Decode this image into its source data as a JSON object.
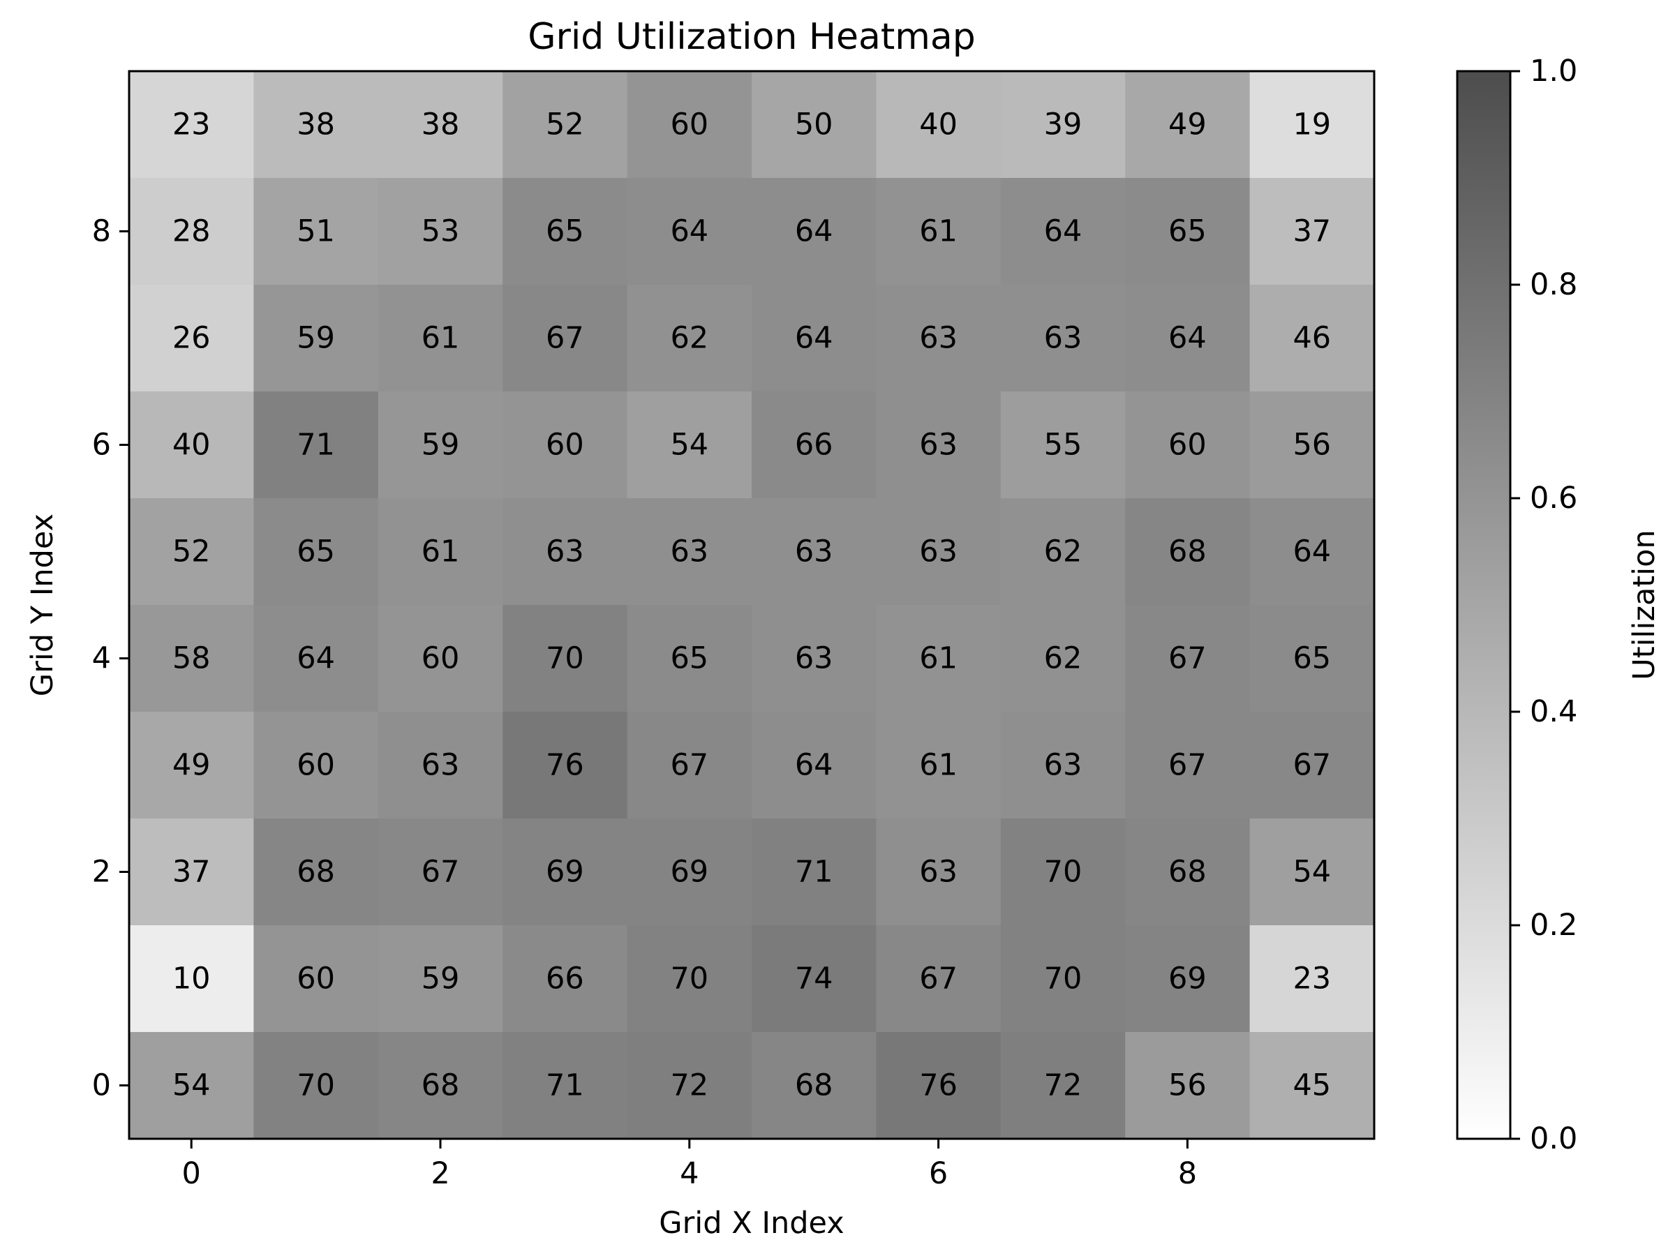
{
  "chart_data": {
    "type": "heatmap",
    "title": "Grid Utilization Heatmap",
    "xlabel": "Grid X Index",
    "ylabel": "Grid Y Index",
    "x": [
      0,
      1,
      2,
      3,
      4,
      5,
      6,
      7,
      8,
      9
    ],
    "y": [
      0,
      1,
      2,
      3,
      4,
      5,
      6,
      7,
      8,
      9
    ],
    "x_ticks": [
      "0",
      "2",
      "4",
      "6",
      "8"
    ],
    "y_ticks": [
      "0",
      "2",
      "4",
      "6",
      "8"
    ],
    "values_by_row_from_top": [
      [
        23,
        38,
        38,
        52,
        60,
        50,
        40,
        39,
        49,
        19
      ],
      [
        28,
        51,
        53,
        65,
        64,
        64,
        61,
        64,
        65,
        37
      ],
      [
        26,
        59,
        61,
        67,
        62,
        64,
        63,
        63,
        64,
        46
      ],
      [
        40,
        71,
        59,
        60,
        54,
        66,
        63,
        55,
        60,
        56
      ],
      [
        52,
        65,
        61,
        63,
        63,
        63,
        63,
        62,
        68,
        64
      ],
      [
        58,
        64,
        60,
        70,
        65,
        63,
        61,
        62,
        67,
        65
      ],
      [
        49,
        60,
        63,
        76,
        67,
        64,
        61,
        63,
        67,
        67
      ],
      [
        37,
        68,
        67,
        69,
        69,
        71,
        63,
        70,
        68,
        54
      ],
      [
        10,
        60,
        59,
        66,
        70,
        74,
        67,
        70,
        69,
        23
      ],
      [
        54,
        70,
        68,
        71,
        72,
        68,
        76,
        72,
        56,
        45
      ]
    ],
    "value_scale": "percent",
    "colorbar": {
      "label": "Utilization",
      "min": 0.0,
      "max": 1.0,
      "ticks": [
        "0.0",
        "0.2",
        "0.4",
        "0.6",
        "0.8",
        "1.0"
      ]
    },
    "colormap": [
      "#ffffff",
      "#4d4d4d"
    ]
  }
}
